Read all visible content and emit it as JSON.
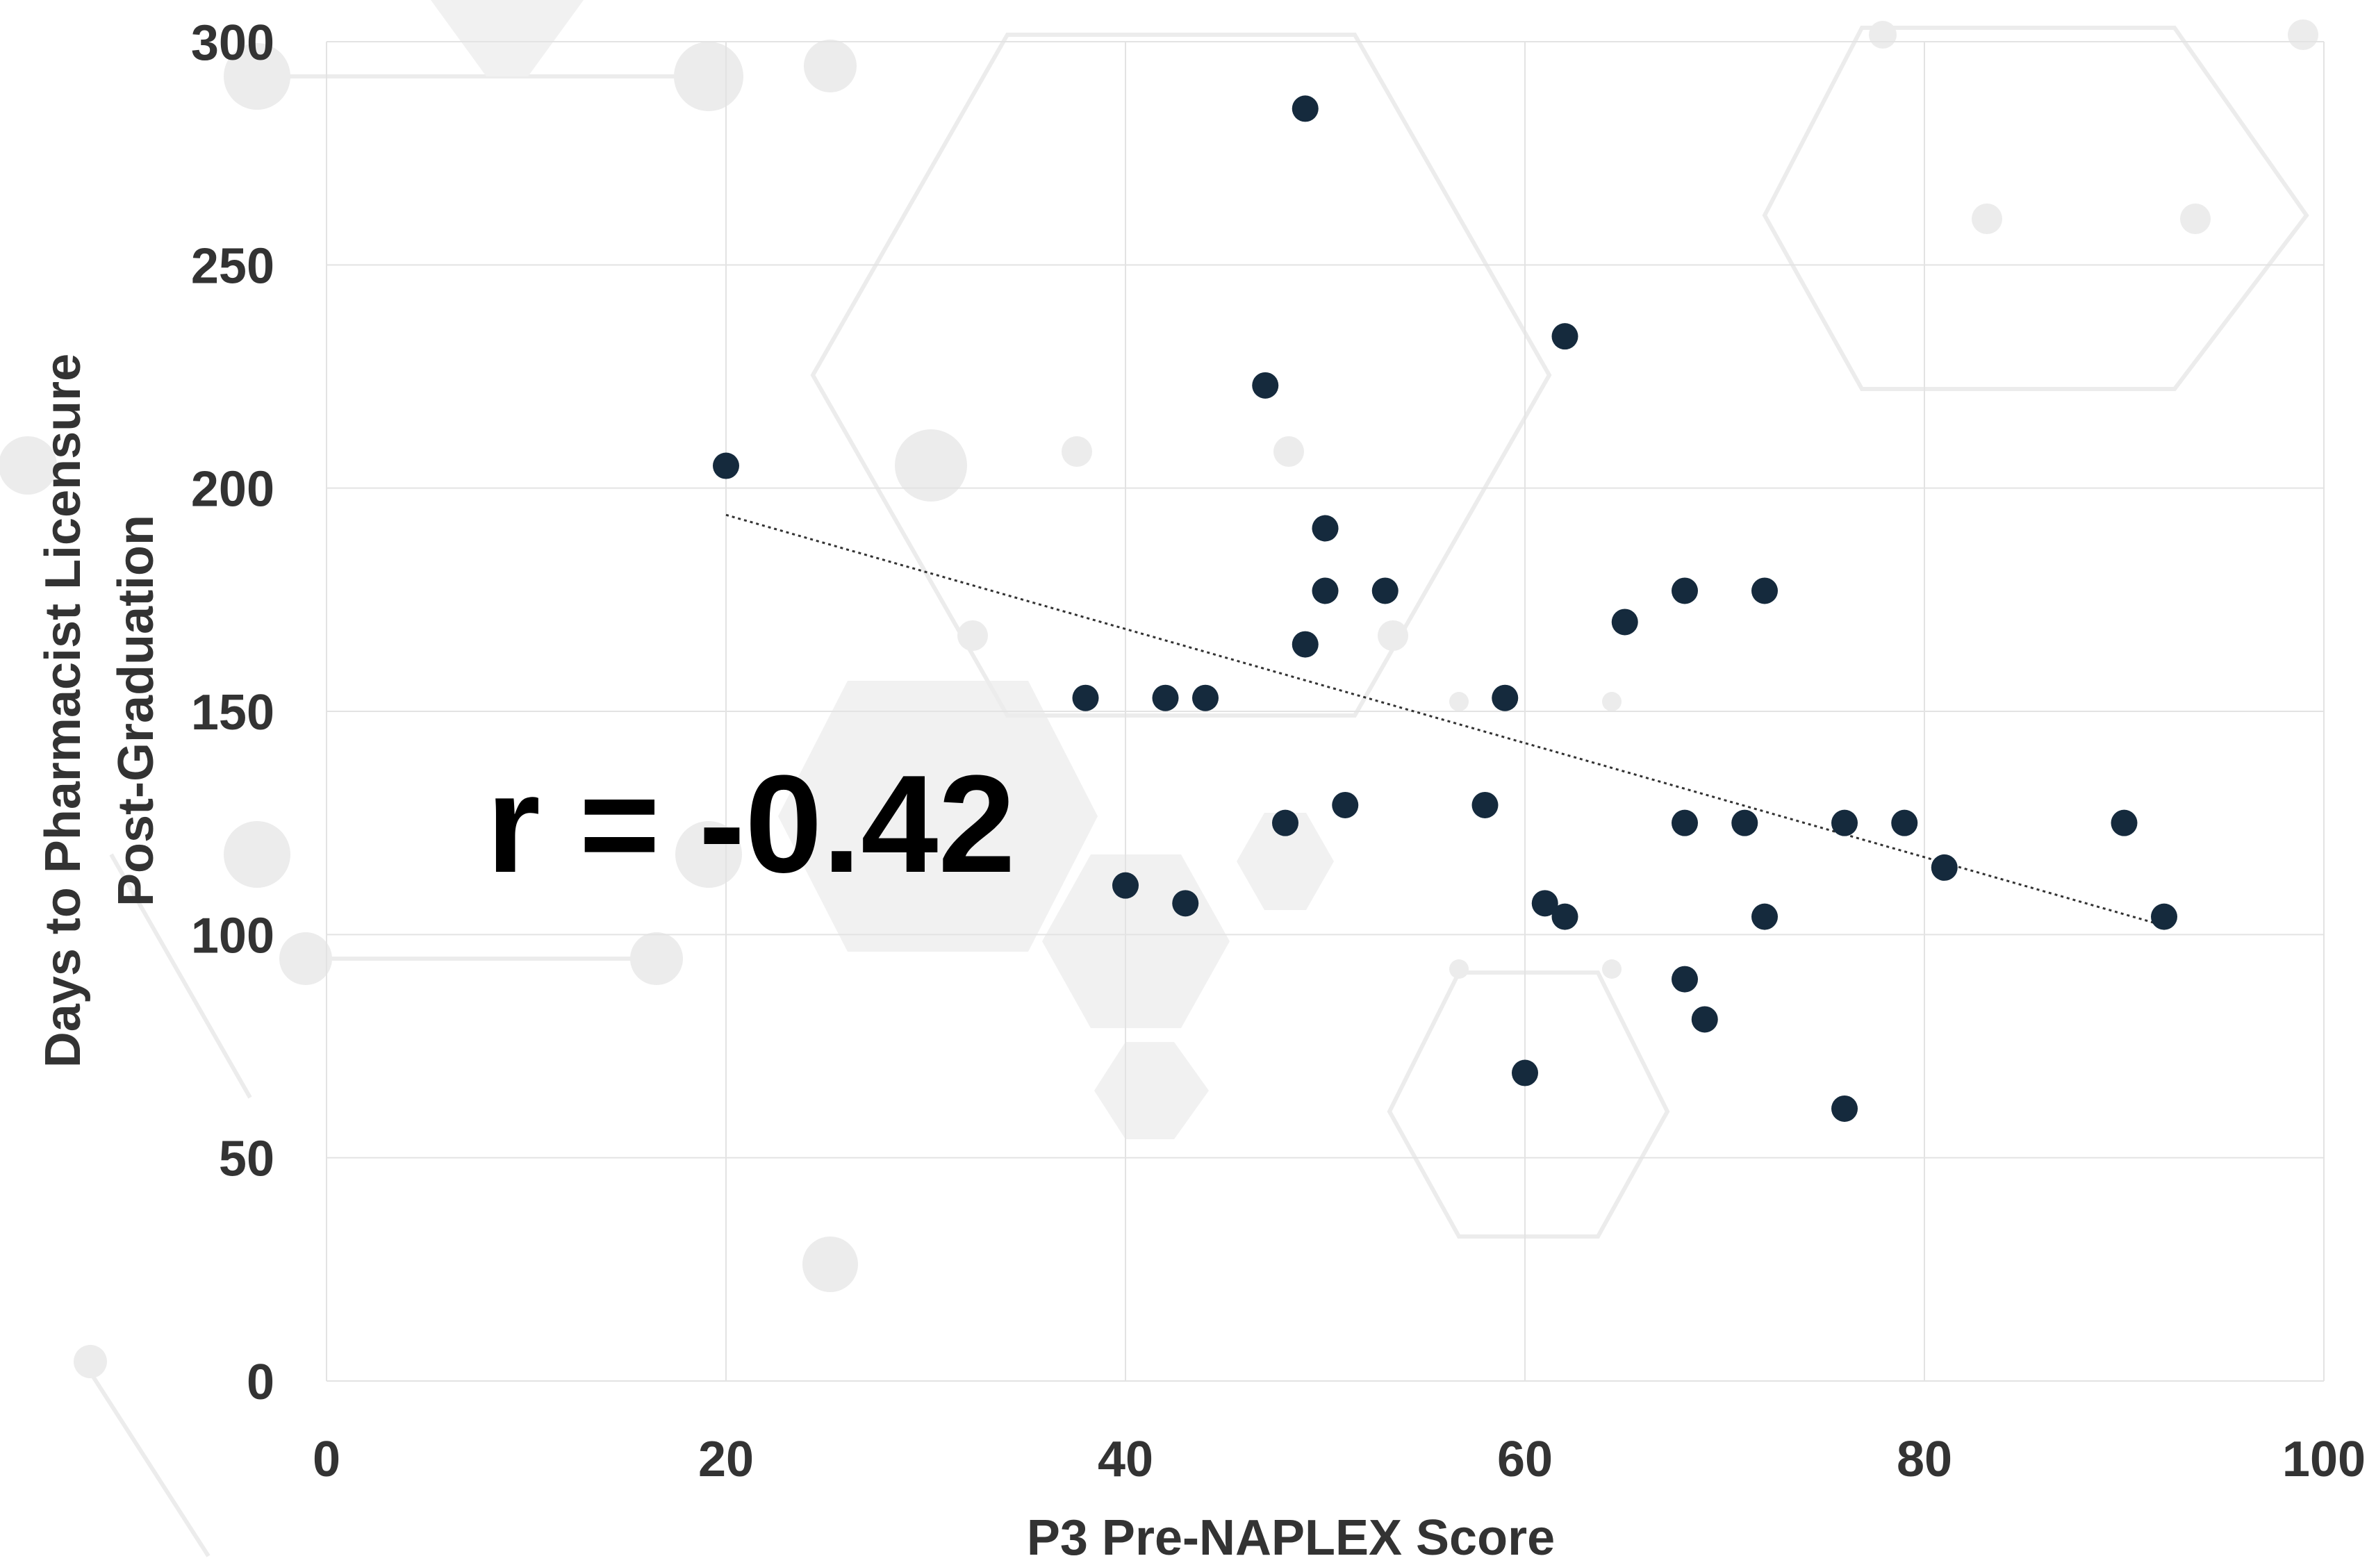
{
  "chart_data": {
    "type": "scatter",
    "title": "",
    "xlabel": "P3 Pre-NAPLEX Score",
    "ylabel_lines": [
      "Days to Pharmacist Licensure",
      "Post-Graduation"
    ],
    "xlim": [
      0,
      100
    ],
    "ylim": [
      0,
      300
    ],
    "x_ticks": [
      0,
      20,
      40,
      60,
      80,
      100
    ],
    "y_ticks": [
      0,
      50,
      100,
      150,
      200,
      250,
      300
    ],
    "grid": true,
    "legend": "none",
    "annotation": "r = -0.42",
    "trendline": {
      "style": "dotted",
      "from": [
        20,
        194
      ],
      "to": [
        92,
        102
      ]
    },
    "point_color": "#152a3d",
    "series": [
      {
        "points": [
          [
            20,
            205
          ],
          [
            38,
            153
          ],
          [
            40,
            111
          ],
          [
            42,
            153
          ],
          [
            43,
            107
          ],
          [
            44,
            153
          ],
          [
            47,
            223
          ],
          [
            48,
            125
          ],
          [
            49,
            285
          ],
          [
            49,
            165
          ],
          [
            50,
            191
          ],
          [
            50,
            177
          ],
          [
            51,
            129
          ],
          [
            53,
            177
          ],
          [
            58,
            129
          ],
          [
            59,
            153
          ],
          [
            60,
            69
          ],
          [
            61,
            107
          ],
          [
            62,
            234
          ],
          [
            62,
            104
          ],
          [
            65,
            170
          ],
          [
            68,
            177
          ],
          [
            68,
            125
          ],
          [
            68,
            90
          ],
          [
            69,
            81
          ],
          [
            71,
            125
          ],
          [
            72,
            177
          ],
          [
            72,
            104
          ],
          [
            76,
            125
          ],
          [
            76,
            61
          ],
          [
            79,
            125
          ],
          [
            81,
            115
          ],
          [
            90,
            125
          ],
          [
            92,
            104
          ]
        ]
      }
    ]
  }
}
